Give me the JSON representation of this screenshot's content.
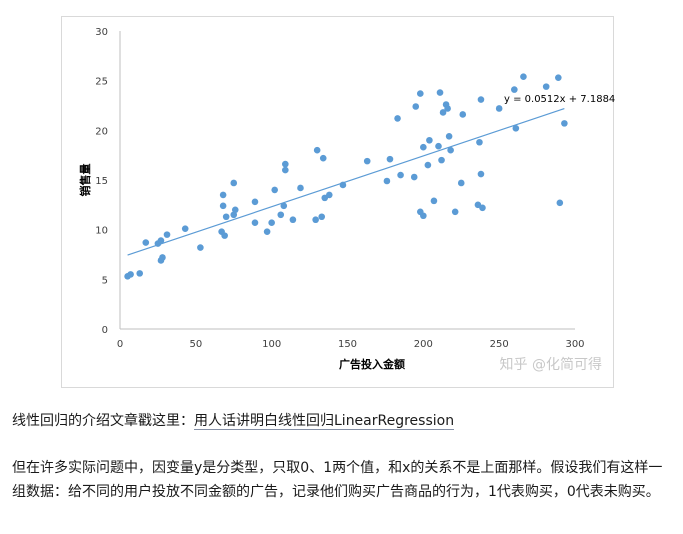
{
  "chart_data": {
    "type": "scatter",
    "xlabel": "广告投入金额",
    "ylabel": "销售量",
    "xlim": [
      0,
      300
    ],
    "ylim": [
      0,
      30
    ],
    "xticks": [
      0,
      50,
      100,
      150,
      200,
      250,
      300
    ],
    "yticks": [
      0,
      5,
      10,
      15,
      20,
      25,
      30
    ],
    "grid": false,
    "point_color": "#5b9bd5",
    "trendline": {
      "slope": 0.0512,
      "intercept": 7.1884,
      "label": "y = 0.0512x + 7.1884",
      "color": "#5b9bd5"
    },
    "points": [
      [
        5,
        5.3
      ],
      [
        7,
        5.5
      ],
      [
        13,
        5.6
      ],
      [
        17,
        8.7
      ],
      [
        25,
        8.6
      ],
      [
        27,
        8.9
      ],
      [
        27,
        6.9
      ],
      [
        28,
        7.2
      ],
      [
        31,
        9.5
      ],
      [
        43,
        10.1
      ],
      [
        53,
        8.2
      ],
      [
        67,
        9.8
      ],
      [
        68,
        12.4
      ],
      [
        68,
        13.5
      ],
      [
        69,
        9.4
      ],
      [
        70,
        11.3
      ],
      [
        75,
        11.5
      ],
      [
        75,
        14.7
      ],
      [
        76,
        12.0
      ],
      [
        89,
        10.7
      ],
      [
        89,
        12.8
      ],
      [
        97,
        9.8
      ],
      [
        100,
        10.7
      ],
      [
        102,
        14.0
      ],
      [
        106,
        11.5
      ],
      [
        108,
        12.4
      ],
      [
        109,
        16.6
      ],
      [
        109,
        16.0
      ],
      [
        114,
        11.0
      ],
      [
        119,
        14.2
      ],
      [
        129,
        11.0
      ],
      [
        130,
        18.0
      ],
      [
        133,
        11.3
      ],
      [
        134,
        17.2
      ],
      [
        135,
        13.2
      ],
      [
        138,
        13.5
      ],
      [
        147,
        14.5
      ],
      [
        163,
        16.9
      ],
      [
        176,
        14.9
      ],
      [
        178,
        17.1
      ],
      [
        183,
        21.2
      ],
      [
        185,
        15.5
      ],
      [
        194,
        15.3
      ],
      [
        195,
        22.4
      ],
      [
        198,
        11.8
      ],
      [
        198,
        23.7
      ],
      [
        200,
        11.4
      ],
      [
        200,
        18.3
      ],
      [
        203,
        16.5
      ],
      [
        204,
        19.0
      ],
      [
        207,
        12.9
      ],
      [
        210,
        18.4
      ],
      [
        211,
        23.8
      ],
      [
        212,
        17.0
      ],
      [
        213,
        21.8
      ],
      [
        215,
        22.6
      ],
      [
        216,
        22.2
      ],
      [
        217,
        19.4
      ],
      [
        218,
        18.0
      ],
      [
        221,
        11.8
      ],
      [
        225,
        14.7
      ],
      [
        226,
        21.6
      ],
      [
        236,
        12.5
      ],
      [
        237,
        18.8
      ],
      [
        238,
        23.1
      ],
      [
        238,
        15.6
      ],
      [
        239,
        12.2
      ],
      [
        250,
        22.2
      ],
      [
        260,
        24.1
      ],
      [
        261,
        20.2
      ],
      [
        266,
        25.4
      ],
      [
        281,
        24.4
      ],
      [
        289,
        25.3
      ],
      [
        290,
        12.7
      ],
      [
        293,
        20.7
      ]
    ]
  },
  "watermark": "知乎 @化简可得",
  "intro": {
    "prefix": "线性回归的介绍文章戳这里：",
    "link": "用人话讲明白线性回归LinearRegression"
  },
  "paragraph": "但在许多实际问题中，因变量y是分类型，只取0、1两个值，和x的关系不是上面那样。假设我们有这样一组数据：给不同的用户投放不同金额的广告，记录他们购买广告商品的行为，1代表购买，0代表未购买。"
}
